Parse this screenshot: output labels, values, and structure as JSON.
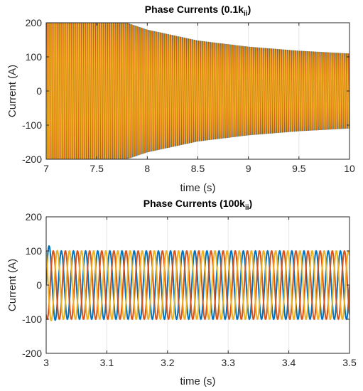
{
  "chart_data": [
    {
      "type": "line",
      "title": "Phase Currents (0.1k",
      "title_subscript": "ii",
      "title_suffix": ")",
      "xlabel": "time (s)",
      "ylabel": "Current (A)",
      "xlim": [
        7,
        10
      ],
      "ylim": [
        -200,
        200
      ],
      "xticks": [
        7,
        7.5,
        8,
        8.5,
        9,
        9.5,
        10
      ],
      "xtick_labels": [
        "7",
        "7.5",
        "8",
        "8.5",
        "9",
        "9.5",
        "10"
      ],
      "yticks": [
        -200,
        -100,
        0,
        100,
        200
      ],
      "ytick_labels": [
        "-200",
        "-100",
        "0",
        "100",
        "200"
      ],
      "grid": true,
      "frequency_hz": 50,
      "envelope": {
        "t": [
          7.0,
          7.5,
          7.8,
          8.0,
          8.5,
          9.0,
          9.5,
          10.0
        ],
        "amplitude": [
          260,
          230,
          200,
          180,
          148,
          130,
          118,
          110
        ]
      },
      "series": [
        {
          "color": "#0072BD",
          "phase_deg": 0
        },
        {
          "color": "#D95319",
          "phase_deg": -120
        },
        {
          "color": "#EDB120",
          "phase_deg": 120
        }
      ]
    },
    {
      "type": "line",
      "title": "Phase Currents (100k",
      "title_subscript": "ii",
      "title_suffix": ")",
      "xlabel": "time (s)",
      "ylabel": "Current (A)",
      "xlim": [
        3,
        3.5
      ],
      "ylim": [
        -200,
        200
      ],
      "xticks": [
        3,
        3.1,
        3.2,
        3.3,
        3.4,
        3.5
      ],
      "xtick_labels": [
        "3",
        "3.1",
        "3.2",
        "3.3",
        "3.4",
        "3.5"
      ],
      "yticks": [
        -200,
        -100,
        0,
        100,
        200
      ],
      "ytick_labels": [
        "-200",
        "-100",
        "0",
        "100",
        "200"
      ],
      "grid": true,
      "frequency_hz": 50,
      "amplitude": 100,
      "startup_peak": {
        "blue": 133,
        "yellow": -116
      },
      "series": [
        {
          "color": "#0072BD",
          "phase_deg": 0
        },
        {
          "color": "#D95319",
          "phase_deg": -120
        },
        {
          "color": "#EDB120",
          "phase_deg": 120
        }
      ]
    }
  ]
}
